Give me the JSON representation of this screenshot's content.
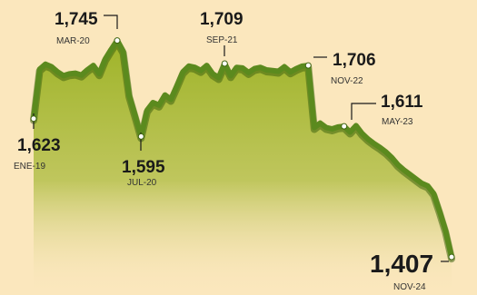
{
  "chart_data": {
    "type": "area",
    "x": [
      "ENE-19",
      "MAR-20",
      "JUL-20",
      "SEP-21",
      "NOV-22",
      "MAY-23",
      "NOV-24"
    ],
    "series": [
      {
        "values": [
          1623,
          1745,
          1595,
          1709,
          1706,
          1611,
          1407
        ]
      }
    ],
    "annotations": [
      {
        "value": "1,623",
        "date": "ENE-19"
      },
      {
        "value": "1,745",
        "date": "MAR-20"
      },
      {
        "value": "1,595",
        "date": "JUL-20"
      },
      {
        "value": "1,709",
        "date": "SEP-21"
      },
      {
        "value": "1,706",
        "date": "NOV-22"
      },
      {
        "value": "1,611",
        "date": "MAY-23"
      },
      {
        "value": "1,407",
        "date": "NOV-24"
      }
    ],
    "ylim": [
      1400,
      1760
    ],
    "grid": false,
    "legend": "none",
    "colors": {
      "background": "#fbe7bd",
      "line": "#5b8a1e",
      "line_shadow": "#3f6410",
      "area_top": "#9fb429",
      "area_bottom": "#fbe7bd"
    }
  }
}
